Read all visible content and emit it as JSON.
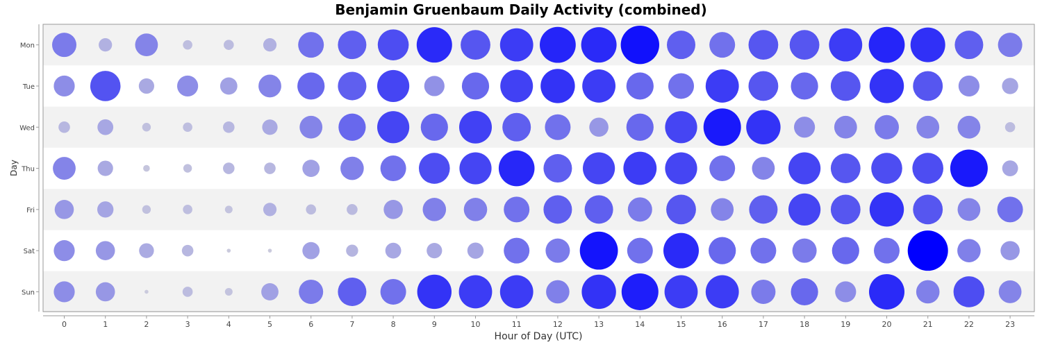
{
  "chart_data": {
    "type": "scatter",
    "title": "Benjamin Gruenbaum Daily Activity (combined)",
    "xlabel": "Hour of Day (UTC)",
    "ylabel": "Day",
    "x": [
      "0",
      "1",
      "2",
      "3",
      "4",
      "5",
      "6",
      "7",
      "8",
      "9",
      "10",
      "11",
      "12",
      "13",
      "14",
      "15",
      "16",
      "17",
      "18",
      "19",
      "20",
      "21",
      "22",
      "23"
    ],
    "days": [
      "Mon",
      "Tue",
      "Wed",
      "Thu",
      "Fri",
      "Sat",
      "Sun"
    ],
    "size_scale_max": 100,
    "values": [
      [
        40,
        12,
        35,
        6,
        7,
        12,
        45,
        55,
        65,
        85,
        60,
        75,
        88,
        85,
        100,
        55,
        45,
        60,
        60,
        75,
        88,
        82,
        55,
        40
      ],
      [
        30,
        62,
        16,
        30,
        20,
        35,
        50,
        55,
        70,
        28,
        50,
        72,
        80,
        75,
        50,
        45,
        75,
        60,
        50,
        60,
        80,
        60,
        30,
        18
      ],
      [
        9,
        17,
        5,
        6,
        9,
        16,
        35,
        50,
        70,
        50,
        72,
        55,
        45,
        25,
        50,
        70,
        95,
        80,
        30,
        35,
        40,
        35,
        35,
        7
      ],
      [
        35,
        16,
        3,
        5,
        9,
        9,
        20,
        37,
        45,
        65,
        70,
        87,
        55,
        70,
        75,
        70,
        45,
        35,
        70,
        60,
        65,
        65,
        95,
        17
      ],
      [
        25,
        18,
        5,
        6,
        4,
        12,
        7,
        8,
        25,
        37,
        37,
        45,
        55,
        55,
        40,
        60,
        35,
        55,
        70,
        60,
        80,
        60,
        35,
        45
      ],
      [
        30,
        25,
        15,
        9,
        1,
        1,
        20,
        10,
        17,
        16,
        18,
        45,
        40,
        98,
        45,
        85,
        50,
        45,
        40,
        50,
        45,
        110,
        37,
        25
      ],
      [
        30,
        25,
        1,
        7,
        4,
        20,
        40,
        55,
        45,
        80,
        75,
        75,
        37,
        80,
        92,
        75,
        75,
        40,
        50,
        30,
        85,
        37,
        65,
        35
      ]
    ],
    "grid": false,
    "legend": "none"
  }
}
